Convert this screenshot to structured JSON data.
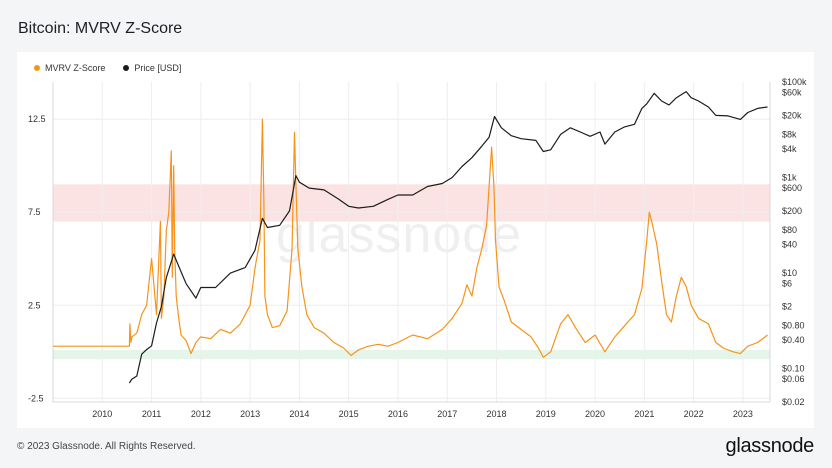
{
  "page": {
    "title": "Bitcoin: MVRV Z-Score",
    "copyright": "© 2023 Glassnode. All Rights Reserved.",
    "brand": "glassnode",
    "watermark": "glassnode"
  },
  "chart_data": {
    "type": "line",
    "title": "Bitcoin: MVRV Z-Score",
    "legend_position": "top-left",
    "grid": true,
    "x_axis": {
      "type": "time",
      "range": [
        2009.0,
        2023.55
      ],
      "tick_labels": [
        "2010",
        "2011",
        "2012",
        "2013",
        "2014",
        "2015",
        "2016",
        "2017",
        "2018",
        "2019",
        "2020",
        "2021",
        "2022",
        "2023"
      ]
    },
    "y_left": {
      "range": [
        -2.7,
        14.5
      ],
      "ticks": [
        -2.5,
        2.5,
        7.5,
        12.5
      ],
      "tick_labels": [
        "-2.5",
        "2.5",
        "7.5",
        "12.5"
      ]
    },
    "y_right": {
      "scale": "log",
      "range": [
        0.02,
        100000
      ],
      "ticks": [
        100000,
        60000,
        20000,
        8000,
        4000,
        1000,
        600,
        200,
        80,
        40,
        10,
        6,
        2,
        0.8,
        0.4,
        0.1,
        0.06,
        0.02
      ],
      "tick_labels": [
        "$100k",
        "$60k",
        "$20k",
        "$8k",
        "$4k",
        "$1k",
        "$600",
        "$200",
        "$80",
        "$40",
        "$10",
        "$6",
        "$2",
        "$0.80",
        "$0.40",
        "$0.10",
        "$0.06",
        "$0.02"
      ]
    },
    "bands": [
      {
        "name": "overvalued zone",
        "from": 7.0,
        "to": 9.0,
        "color": "#fbe3e3"
      },
      {
        "name": "undervalued zone",
        "from": -0.4,
        "to": 0.1,
        "color": "#e6f5ea"
      }
    ],
    "series": [
      {
        "name": "MVRV Z-Score",
        "axis": "left",
        "color": "#f7931a",
        "x": [
          2009.0,
          2010.55,
          2010.56,
          2010.58,
          2010.6,
          2010.7,
          2010.8,
          2010.9,
          2011.0,
          2011.1,
          2011.18,
          2011.2,
          2011.25,
          2011.3,
          2011.35,
          2011.4,
          2011.42,
          2011.45,
          2011.47,
          2011.5,
          2011.55,
          2011.6,
          2011.7,
          2011.8,
          2011.9,
          2012.0,
          2012.2,
          2012.4,
          2012.6,
          2012.8,
          2013.0,
          2013.1,
          2013.2,
          2013.25,
          2013.28,
          2013.3,
          2013.35,
          2013.45,
          2013.6,
          2013.75,
          2013.85,
          2013.9,
          2013.93,
          2013.97,
          2014.05,
          2014.15,
          2014.3,
          2014.5,
          2014.7,
          2014.9,
          2015.05,
          2015.2,
          2015.4,
          2015.6,
          2015.8,
          2016.0,
          2016.3,
          2016.6,
          2016.9,
          2017.1,
          2017.3,
          2017.4,
          2017.5,
          2017.6,
          2017.7,
          2017.8,
          2017.9,
          2017.95,
          2017.98,
          2018.05,
          2018.15,
          2018.3,
          2018.5,
          2018.7,
          2018.85,
          2018.95,
          2019.1,
          2019.3,
          2019.45,
          2019.6,
          2019.8,
          2020.0,
          2020.2,
          2020.4,
          2020.6,
          2020.8,
          2020.95,
          2021.05,
          2021.1,
          2021.15,
          2021.25,
          2021.35,
          2021.45,
          2021.55,
          2021.65,
          2021.75,
          2021.85,
          2021.95,
          2022.1,
          2022.3,
          2022.45,
          2022.6,
          2022.8,
          2022.95,
          2023.1,
          2023.3,
          2023.5
        ],
        "values": [
          0.3,
          0.3,
          1.5,
          0.5,
          0.8,
          1.0,
          2.0,
          2.5,
          5.0,
          2.0,
          7.0,
          1.8,
          3.0,
          6.5,
          7.5,
          10.8,
          4.0,
          10.0,
          5.5,
          3.0,
          1.8,
          0.9,
          0.6,
          -0.1,
          0.5,
          0.8,
          0.7,
          1.2,
          1.0,
          1.5,
          2.5,
          4.5,
          6.0,
          12.5,
          8.0,
          3.0,
          2.0,
          1.3,
          1.4,
          2.2,
          5.5,
          11.8,
          9.0,
          5.5,
          3.5,
          2.0,
          1.3,
          1.0,
          0.5,
          0.2,
          -0.2,
          0.1,
          0.3,
          0.4,
          0.3,
          0.5,
          0.9,
          0.7,
          1.2,
          1.8,
          2.6,
          3.6,
          3.0,
          4.5,
          5.5,
          6.8,
          11.0,
          8.8,
          6.0,
          3.5,
          2.8,
          1.6,
          1.2,
          0.8,
          0.2,
          -0.3,
          0.0,
          1.5,
          2.0,
          1.3,
          0.5,
          0.9,
          0.0,
          0.8,
          1.4,
          2.0,
          3.4,
          6.0,
          7.5,
          7.0,
          5.8,
          3.8,
          2.0,
          1.6,
          3.0,
          4.0,
          3.5,
          2.5,
          1.8,
          1.5,
          0.5,
          0.2,
          0.0,
          -0.1,
          0.3,
          0.5,
          0.9
        ]
      },
      {
        "name": "Price [USD]",
        "axis": "right",
        "color": "#1c1c1c",
        "x": [
          2010.55,
          2010.6,
          2010.7,
          2010.8,
          2010.9,
          2011.0,
          2011.1,
          2011.2,
          2011.3,
          2011.45,
          2011.55,
          2011.7,
          2011.9,
          2012.0,
          2012.3,
          2012.6,
          2012.9,
          2013.1,
          2013.25,
          2013.35,
          2013.6,
          2013.8,
          2013.93,
          2014.0,
          2014.2,
          2014.5,
          2014.8,
          2015.0,
          2015.2,
          2015.5,
          2015.8,
          2016.0,
          2016.3,
          2016.6,
          2016.9,
          2017.1,
          2017.3,
          2017.5,
          2017.7,
          2017.85,
          2017.96,
          2018.1,
          2018.3,
          2018.5,
          2018.8,
          2018.95,
          2019.1,
          2019.3,
          2019.5,
          2019.7,
          2019.9,
          2020.1,
          2020.2,
          2020.4,
          2020.6,
          2020.8,
          2020.95,
          2021.05,
          2021.2,
          2021.35,
          2021.5,
          2021.65,
          2021.85,
          2021.95,
          2022.1,
          2022.3,
          2022.45,
          2022.7,
          2022.95,
          2023.1,
          2023.3,
          2023.5
        ],
        "values": [
          0.05,
          0.06,
          0.07,
          0.2,
          0.25,
          0.3,
          0.9,
          2,
          8,
          25,
          14,
          6,
          3,
          5,
          5,
          10,
          13,
          30,
          140,
          90,
          100,
          200,
          1100,
          800,
          600,
          550,
          350,
          250,
          230,
          250,
          350,
          430,
          430,
          650,
          750,
          1000,
          1700,
          2600,
          4500,
          7000,
          19000,
          11000,
          7500,
          6500,
          6000,
          3500,
          3800,
          8000,
          11000,
          9000,
          7300,
          9000,
          5000,
          9000,
          11500,
          13000,
          28000,
          35000,
          58000,
          40000,
          33000,
          47000,
          63000,
          47000,
          40000,
          30000,
          20000,
          19500,
          16500,
          23000,
          28000,
          30000
        ]
      }
    ]
  }
}
